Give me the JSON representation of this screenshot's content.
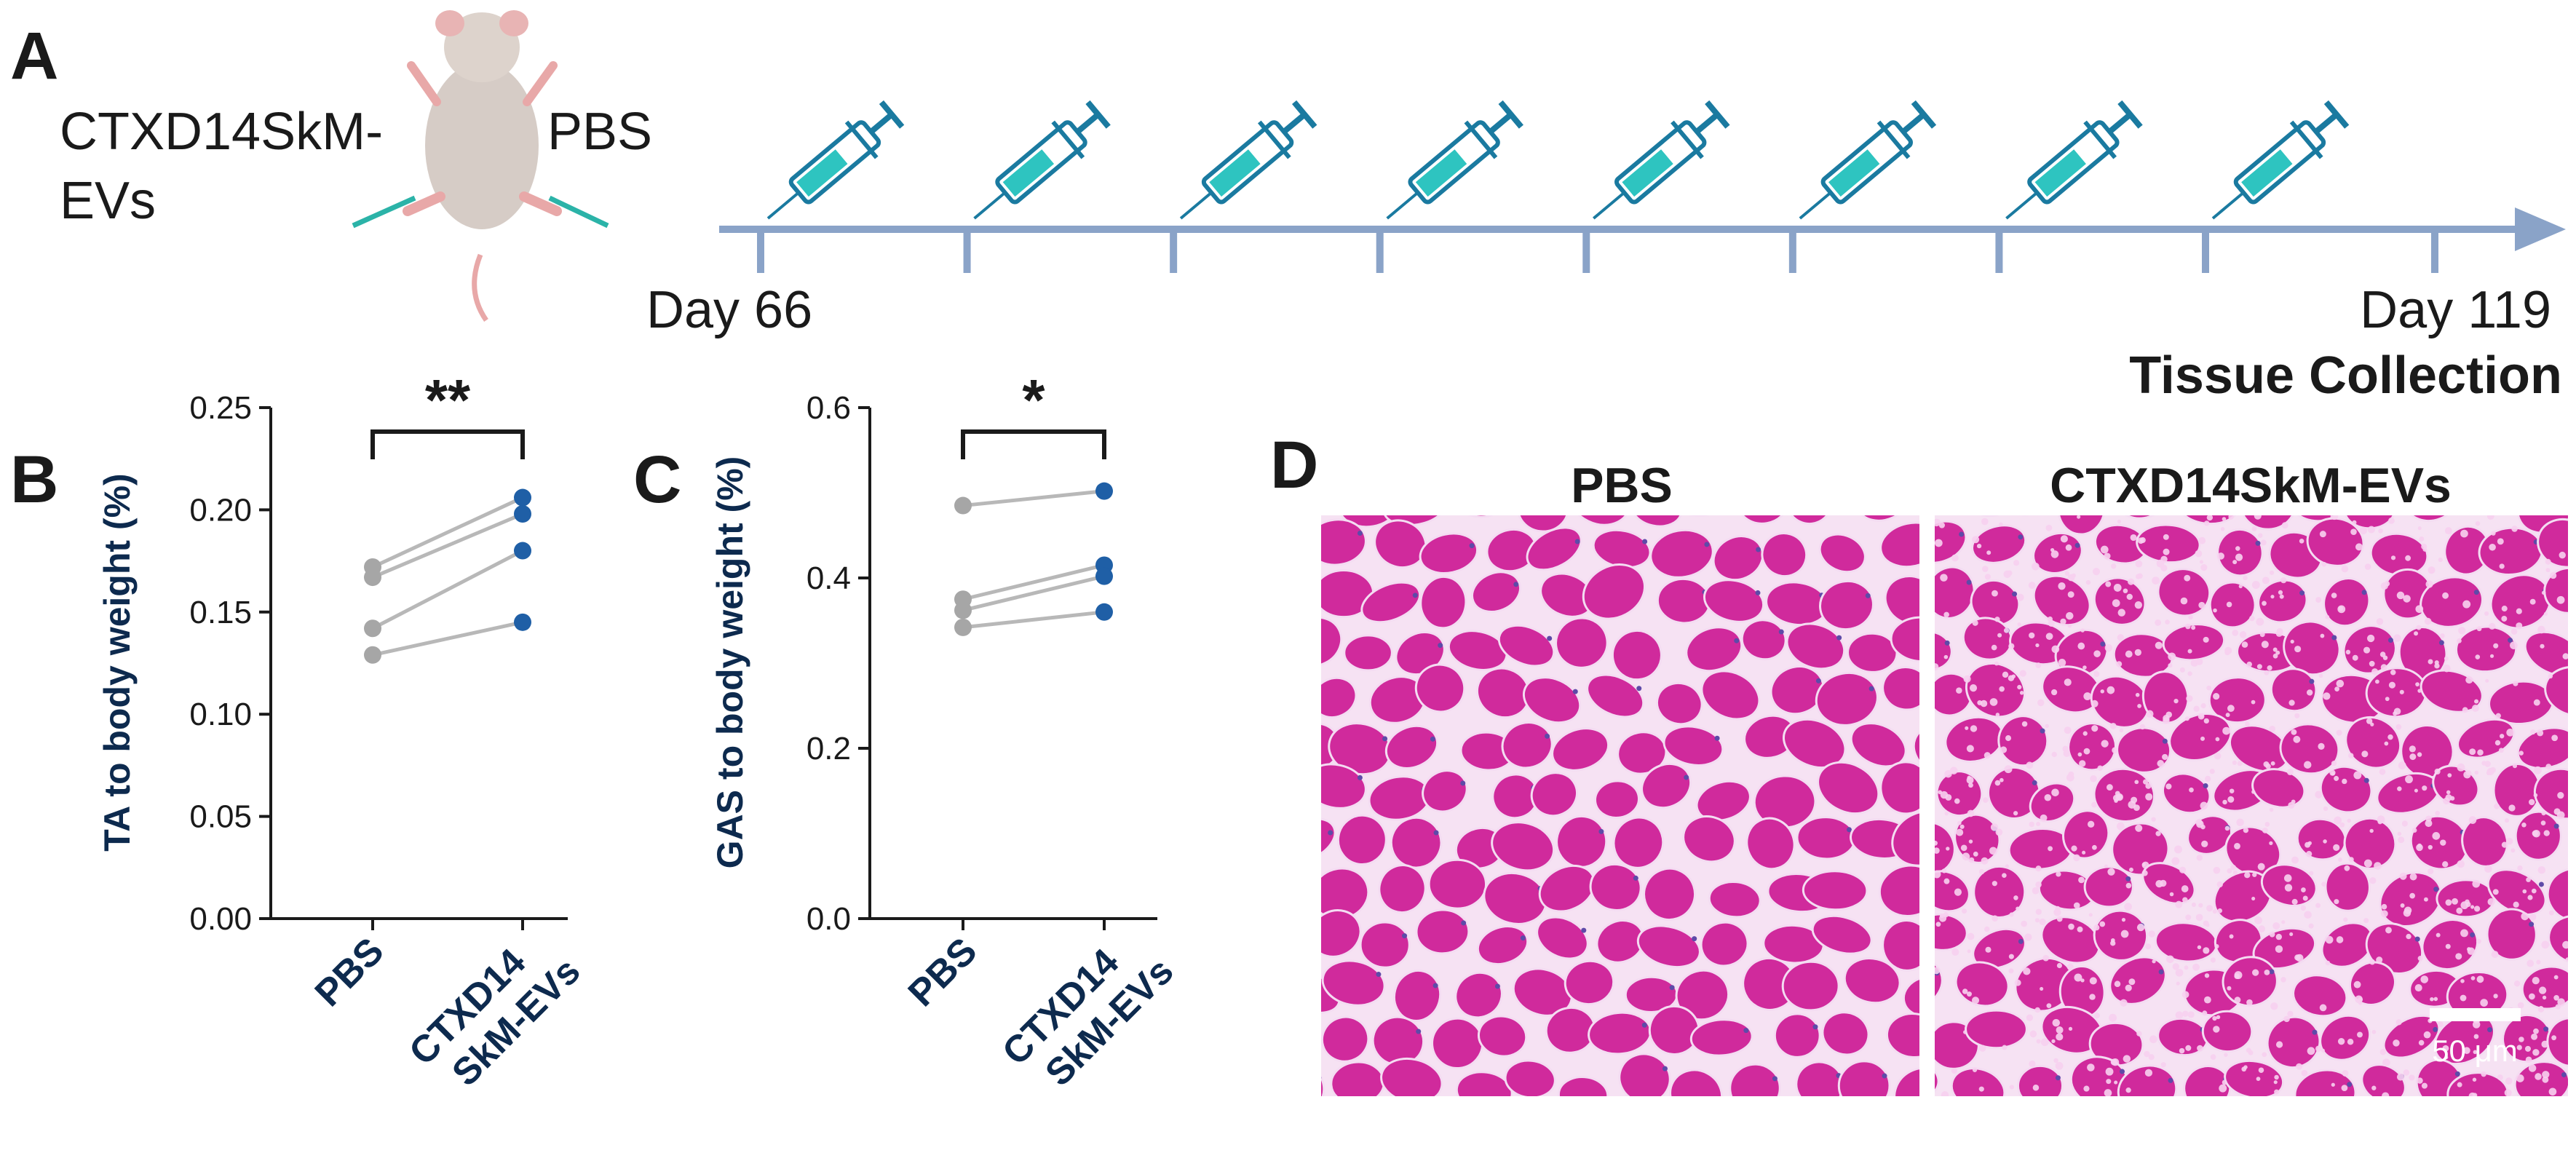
{
  "panelA": {
    "letter": "A",
    "left_group": "CTXD14SkM-\nEVs",
    "right_group": "PBS",
    "timeline": {
      "start_label": "Day 66",
      "end_label": "Day 119",
      "end_sublabel": "Tissue Collection",
      "injections": 8
    }
  },
  "chart_data": [
    {
      "type": "scatter",
      "panel": "B",
      "ylabel": "TA to body weight (%)",
      "categories": [
        "PBS",
        "CTXD14\nSkM-EVs"
      ],
      "ylim": [
        0,
        0.25
      ],
      "yticks": [
        0.0,
        0.05,
        0.1,
        0.15,
        0.2,
        0.25
      ],
      "ytick_labels": [
        "0.00",
        "0.05",
        "0.10",
        "0.15",
        "0.20",
        "0.25"
      ],
      "pairs": [
        [
          0.172,
          0.206
        ],
        [
          0.167,
          0.198
        ],
        [
          0.142,
          0.18
        ],
        [
          0.129,
          0.145
        ]
      ],
      "significance": "**",
      "colors": {
        "pbs": "#a6a6a6",
        "evs": "#1f5fa6",
        "line": "#b8b8b8"
      }
    },
    {
      "type": "scatter",
      "panel": "C",
      "ylabel": "GAS to body weight (%)",
      "categories": [
        "PBS",
        "CTXD14\nSkM-EVs"
      ],
      "ylim": [
        0,
        0.6
      ],
      "yticks": [
        0.0,
        0.2,
        0.4,
        0.6
      ],
      "ytick_labels": [
        "0.0",
        "0.2",
        "0.4",
        "0.6"
      ],
      "pairs": [
        [
          0.485,
          0.502
        ],
        [
          0.375,
          0.415
        ],
        [
          0.362,
          0.402
        ],
        [
          0.342,
          0.36
        ]
      ],
      "significance": "*",
      "colors": {
        "pbs": "#a6a6a6",
        "evs": "#1f5fa6",
        "line": "#b8b8b8"
      }
    }
  ],
  "panelD": {
    "letter": "D",
    "left_title": "PBS",
    "right_title": "CTXD14SkM-EVs",
    "scale_label": "50 μm",
    "colors": {
      "tissue": "#d02a9c",
      "membrane": "#f4dcf2",
      "nuclei": "#5e4aa8"
    }
  }
}
